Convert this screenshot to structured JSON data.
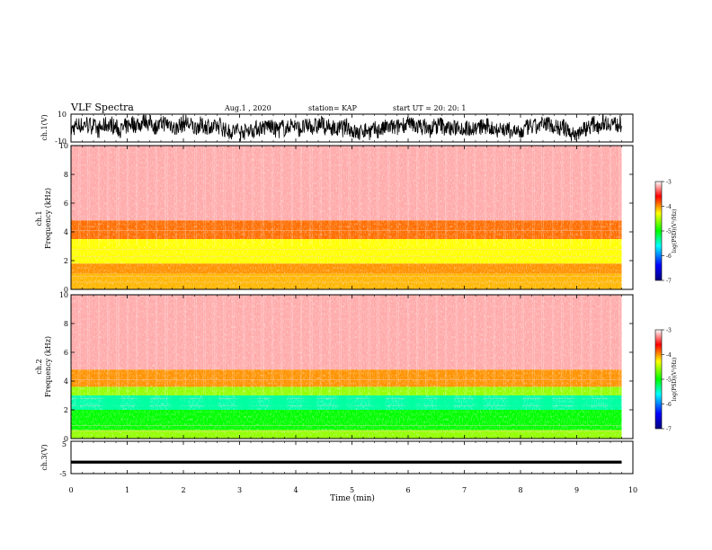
{
  "header": {
    "title": "VLF Spectra",
    "date": "Aug.1 , 2020",
    "station": "station= KAP",
    "start": "start UT = 20: 20: 1"
  },
  "colors": {
    "colormap": [
      "#000080",
      "#0000ff",
      "#00ffff",
      "#00ff00",
      "#ffff00",
      "#ff0000",
      "#ffffff"
    ]
  },
  "chart_data": [
    {
      "type": "line",
      "ylabel": "ch.1(V)",
      "ylim": [
        -10,
        10
      ],
      "ytick_labels": [
        "10",
        "-10"
      ],
      "xlim": [
        0,
        10
      ],
      "note": "noisy waveform spanning roughly -10 to 10 V over 0-9.8 min"
    },
    {
      "type": "heatmap",
      "ylabel_channel": "ch.1",
      "ylabel": "Frequency (kHz)",
      "ylim": [
        0,
        10
      ],
      "ytick_labels": [
        "0",
        "2",
        "4",
        "6",
        "8",
        "10"
      ],
      "xlim": [
        0,
        9.8
      ],
      "colorbar": {
        "label": "log(PSD)(V²/Hz)",
        "range": [
          -7,
          -3
        ],
        "tick_labels": [
          "-3",
          "-4",
          "-5",
          "-6",
          "-7"
        ]
      },
      "bands": [
        {
          "freq_khz": [
            0,
            1.1
          ],
          "log_psd": -4.1
        },
        {
          "freq_khz": [
            1.1,
            1.8
          ],
          "log_psd": -4.0
        },
        {
          "freq_khz": [
            1.8,
            3.5
          ],
          "log_psd": -4.3
        },
        {
          "freq_khz": [
            3.5,
            4.8
          ],
          "log_psd": -3.9
        },
        {
          "freq_khz": [
            4.8,
            10
          ],
          "log_psd": -3.2
        }
      ]
    },
    {
      "type": "heatmap",
      "ylabel_channel": "ch.2",
      "ylabel": "Frequency (kHz)",
      "ylim": [
        0,
        10
      ],
      "ytick_labels": [
        "0",
        "2",
        "4",
        "6",
        "8",
        "10"
      ],
      "xlim": [
        0,
        9.8
      ],
      "colorbar": {
        "label": "log(PSD)(V²/Hz)",
        "range": [
          -7,
          -3
        ],
        "tick_labels": [
          "-3",
          "-4",
          "-5",
          "-6",
          "-7"
        ]
      },
      "bands": [
        {
          "freq_khz": [
            0,
            0.6
          ],
          "log_psd": -4.6
        },
        {
          "freq_khz": [
            0.6,
            2.0
          ],
          "log_psd": -5.0
        },
        {
          "freq_khz": [
            2.0,
            3.0
          ],
          "log_psd": -5.4
        },
        {
          "freq_khz": [
            3.0,
            3.6
          ],
          "log_psd": -4.6
        },
        {
          "freq_khz": [
            3.6,
            4.8
          ],
          "log_psd": -4.0
        },
        {
          "freq_khz": [
            4.8,
            10
          ],
          "log_psd": -3.2
        }
      ]
    },
    {
      "type": "line",
      "ylabel": "ch.3(V)",
      "ylim": [
        -5,
        5
      ],
      "ytick_labels": [
        "5",
        "-5"
      ],
      "xlim": [
        0,
        10
      ],
      "note": "near-constant signal around -1.5 V from 0 to 9.8 min"
    }
  ],
  "xaxis": {
    "label": "Time (min)",
    "tick_labels": [
      "0",
      "1",
      "2",
      "3",
      "4",
      "5",
      "6",
      "7",
      "8",
      "9",
      "10"
    ]
  }
}
